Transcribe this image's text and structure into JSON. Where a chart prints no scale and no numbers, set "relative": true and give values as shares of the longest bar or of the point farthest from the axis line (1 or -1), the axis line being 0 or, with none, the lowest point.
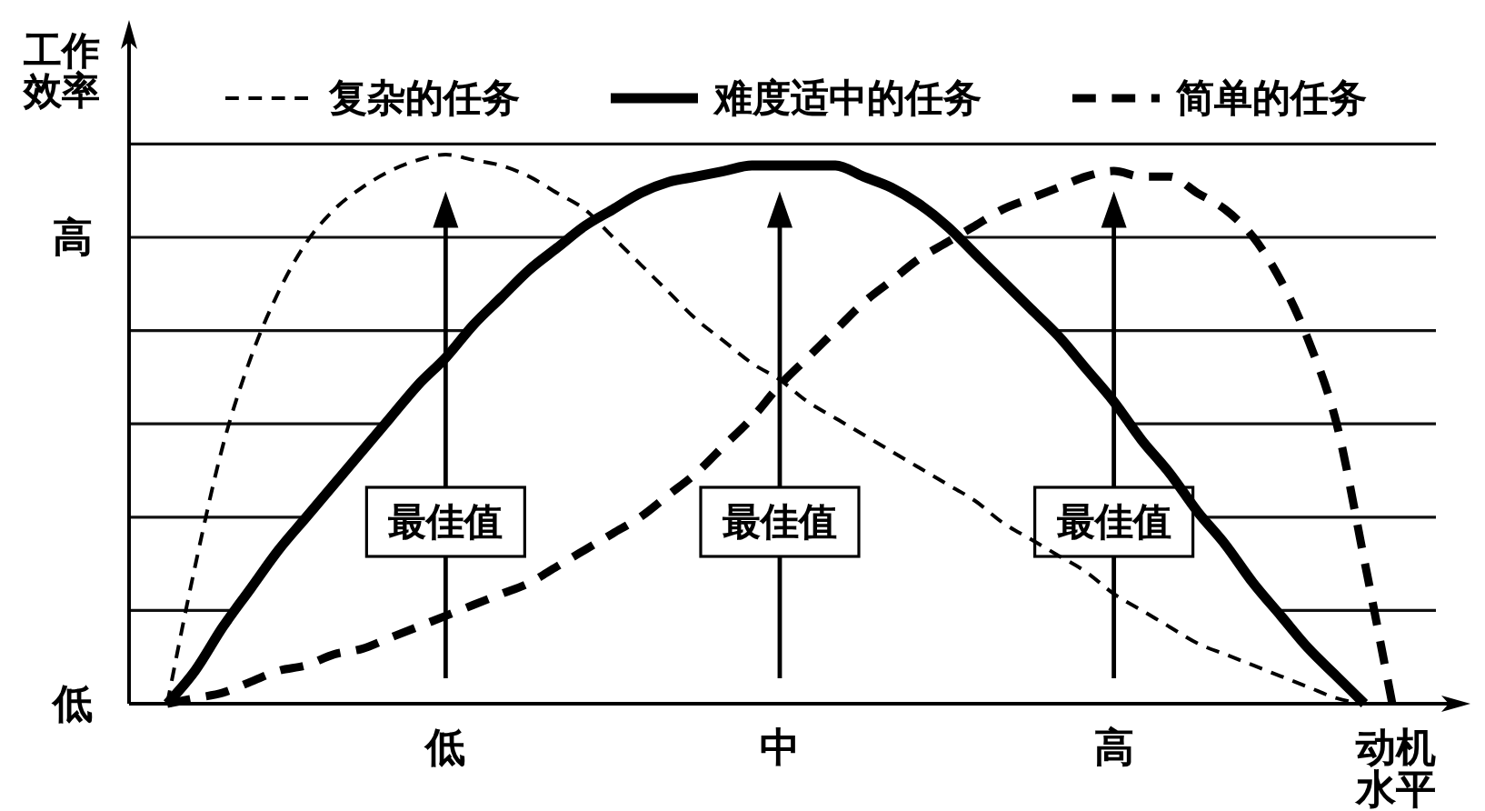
{
  "chart_data": {
    "type": "line",
    "ylabel": "工作效率",
    "xlabel": "动机水平",
    "relative": true,
    "categories": [
      null,
      null,
      null,
      null,
      null,
      null,
      null,
      null,
      null,
      null,
      "低",
      null,
      null,
      null,
      null,
      null,
      null,
      null,
      null,
      null,
      null,
      null,
      "中",
      null,
      null,
      null,
      null,
      null,
      null,
      null,
      null,
      null,
      null,
      null,
      "高",
      null,
      null,
      null,
      null,
      null,
      null,
      null,
      null,
      null,
      null
    ],
    "grid": "y",
    "legend": "top",
    "series": [
      {
        "name": "复杂的任务",
        "color": "#000000",
        "line_style": "dashed",
        "values": [
          0,
          0.25,
          0.47,
          0.63,
          0.75,
          0.84,
          0.9,
          0.94,
          0.97,
          0.99,
          1,
          0.99,
          0.98,
          0.96,
          0.93,
          0.9,
          0.85,
          0.8,
          0.75,
          0.7,
          0.66,
          0.62,
          0.59,
          0.55,
          0.52,
          0.49,
          0.46,
          0.43,
          0.4,
          0.37,
          0.33,
          0.3,
          0.27,
          0.24,
          0.2,
          0.17,
          0.14,
          0.11,
          0.09,
          0.07,
          0.05,
          0.03,
          0.01,
          0,
          null
        ]
      },
      {
        "name": "难度适中的任务",
        "color": "#000000",
        "line_style": "solid",
        "values": [
          0,
          0.06,
          0.14,
          0.21,
          0.28,
          0.34,
          0.4,
          0.46,
          0.52,
          0.58,
          0.63,
          0.69,
          0.74,
          0.79,
          0.83,
          0.87,
          0.9,
          0.93,
          0.95,
          0.96,
          0.97,
          0.98,
          0.98,
          0.98,
          0.98,
          0.96,
          0.94,
          0.91,
          0.87,
          0.82,
          0.77,
          0.72,
          0.67,
          0.61,
          0.55,
          0.48,
          0.42,
          0.35,
          0.29,
          0.22,
          0.16,
          0.1,
          0.05,
          0,
          null
        ]
      },
      {
        "name": "简单的任务",
        "color": "#000000",
        "line_style": "dashed",
        "values": [
          0,
          0.01,
          0.02,
          0.04,
          0.06,
          0.07,
          0.09,
          0.1,
          0.12,
          0.14,
          0.16,
          0.18,
          0.2,
          0.22,
          0.25,
          0.28,
          0.31,
          0.34,
          0.38,
          0.42,
          0.47,
          0.52,
          0.58,
          0.63,
          0.68,
          0.73,
          0.77,
          0.81,
          0.84,
          0.87,
          0.9,
          0.92,
          0.94,
          0.96,
          0.97,
          0.96,
          0.96,
          0.93,
          0.9,
          0.85,
          0.77,
          0.66,
          0.51,
          0.26,
          0
        ]
      }
    ],
    "annotations": [
      "高",
      "最佳值",
      "最佳值",
      "最佳值",
      "低"
    ]
  }
}
